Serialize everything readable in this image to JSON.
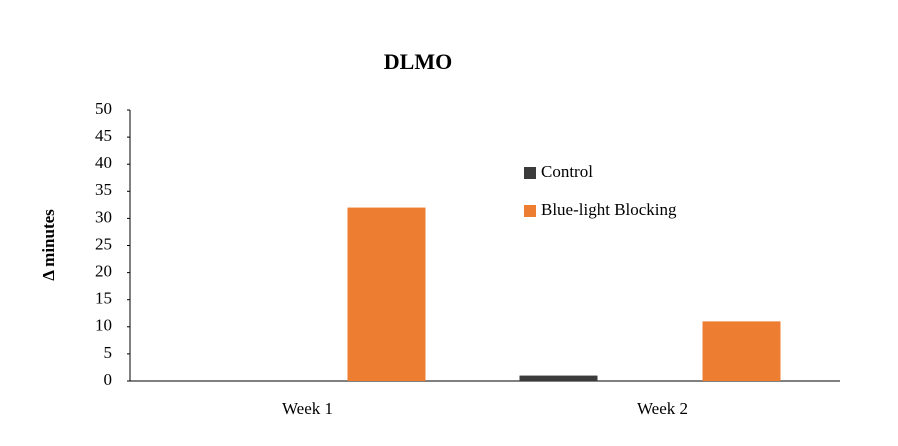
{
  "chart_data": {
    "type": "bar",
    "title": "DLMO",
    "y_label": "Δ minutes",
    "categories": [
      "Week 1",
      "Week 2"
    ],
    "series": [
      {
        "name": "Control",
        "color": "#3b3b3b",
        "values": [
          0,
          1
        ]
      },
      {
        "name": "Blue-light Blocking",
        "color": "#ed7d31",
        "values": [
          32,
          11
        ]
      }
    ],
    "ylim": [
      0,
      50
    ],
    "yticks": [
      0,
      5,
      10,
      15,
      20,
      25,
      30,
      35,
      40,
      45,
      50
    ],
    "grid": false
  }
}
